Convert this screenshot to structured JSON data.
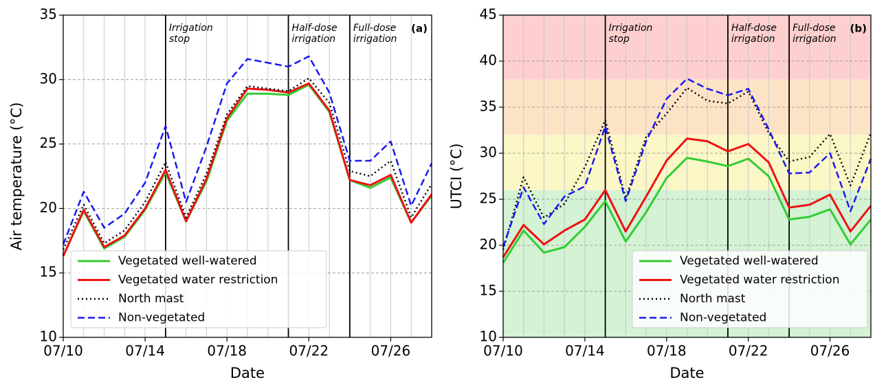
{
  "chart_data": [
    {
      "type": "line",
      "panel_label": "(a)",
      "xlabel": "Date",
      "ylabel": "Air temperature (°C)",
      "x": [
        "07/10",
        "07/11",
        "07/12",
        "07/13",
        "07/14",
        "07/15",
        "07/16",
        "07/17",
        "07/18",
        "07/19",
        "07/20",
        "07/21",
        "07/22",
        "07/23",
        "07/24",
        "07/25",
        "07/26",
        "07/27",
        "07/28"
      ],
      "xlim": [
        "07/10",
        "07/28"
      ],
      "xticks": [
        "07/10",
        "07/14",
        "07/18",
        "07/22",
        "07/26"
      ],
      "ylim": [
        10,
        35
      ],
      "yticks": [
        10,
        15,
        20,
        25,
        30,
        35
      ],
      "grid": true,
      "legend": "lower left",
      "events": [
        {
          "x": "07/15",
          "label": [
            "Irrigation",
            "stop"
          ]
        },
        {
          "x": "07/21",
          "label": [
            "Half-dose",
            "irrigation"
          ]
        },
        {
          "x": "07/24",
          "label": [
            "Full-dose",
            "irrigation"
          ]
        }
      ],
      "series": [
        {
          "name": "Vegetated well-watered",
          "color": "#33cc33",
          "style": "solid",
          "values": [
            16.3,
            19.8,
            16.9,
            17.8,
            19.9,
            22.8,
            19.0,
            22.1,
            26.8,
            28.9,
            28.9,
            28.8,
            29.6,
            27.5,
            22.2,
            21.6,
            22.4,
            18.9,
            21.0
          ]
        },
        {
          "name": "Vegetated water restriction",
          "color": "#ee1111",
          "style": "solid",
          "values": [
            16.3,
            19.9,
            17.0,
            17.9,
            20.0,
            23.0,
            19.0,
            22.3,
            27.0,
            29.3,
            29.2,
            29.0,
            29.7,
            27.6,
            22.2,
            21.8,
            22.6,
            18.9,
            21.1
          ]
        },
        {
          "name": "North mast",
          "color": "#000000",
          "style": "dotted",
          "values": [
            16.8,
            20.3,
            17.3,
            18.3,
            20.5,
            23.6,
            19.3,
            22.7,
            27.3,
            29.5,
            29.3,
            29.1,
            30.1,
            28.2,
            22.9,
            22.5,
            23.7,
            19.3,
            21.9
          ]
        },
        {
          "name": "Non-vegetated",
          "color": "#1a1aee",
          "style": "dashed",
          "values": [
            17.2,
            21.3,
            18.5,
            19.6,
            22.0,
            26.4,
            20.5,
            24.8,
            29.7,
            31.6,
            31.3,
            31.0,
            31.8,
            29.0,
            23.7,
            23.7,
            25.2,
            20.2,
            23.5
          ]
        }
      ]
    },
    {
      "type": "line",
      "panel_label": "(b)",
      "xlabel": "Date",
      "ylabel": "UTCI (°C)",
      "x": [
        "07/10",
        "07/11",
        "07/12",
        "07/13",
        "07/14",
        "07/15",
        "07/16",
        "07/17",
        "07/18",
        "07/19",
        "07/20",
        "07/21",
        "07/22",
        "07/23",
        "07/24",
        "07/25",
        "07/26",
        "07/27",
        "07/28"
      ],
      "xlim": [
        "07/10",
        "07/28"
      ],
      "xticks": [
        "07/10",
        "07/14",
        "07/18",
        "07/22",
        "07/26"
      ],
      "ylim": [
        10,
        45
      ],
      "yticks": [
        10,
        15,
        20,
        25,
        30,
        35,
        40,
        45
      ],
      "grid": true,
      "legend": "lower right",
      "bands": [
        {
          "from": 10,
          "to": 26,
          "color": "#d4f2d4"
        },
        {
          "from": 26,
          "to": 32,
          "color": "#fbf7c6"
        },
        {
          "from": 32,
          "to": 38,
          "color": "#fde3c6"
        },
        {
          "from": 38,
          "to": 45,
          "color": "#fdcfcf"
        }
      ],
      "events": [
        {
          "x": "07/15",
          "label": [
            "Irrigation",
            "stop"
          ]
        },
        {
          "x": "07/21",
          "label": [
            "Half-dose",
            "irrigation"
          ]
        },
        {
          "x": "07/24",
          "label": [
            "Full-dose",
            "irrigation"
          ]
        }
      ],
      "series": [
        {
          "name": "Vegetated well-watered",
          "color": "#33cc33",
          "style": "solid",
          "values": [
            18.1,
            21.6,
            19.2,
            19.8,
            22.0,
            24.8,
            20.4,
            23.6,
            27.3,
            29.5,
            29.1,
            28.6,
            29.4,
            27.5,
            22.8,
            23.1,
            23.9,
            20.1,
            22.8
          ]
        },
        {
          "name": "Vegetated water restriction",
          "color": "#ee1111",
          "style": "solid",
          "values": [
            18.7,
            22.2,
            20.1,
            21.6,
            22.8,
            26.0,
            21.5,
            25.3,
            29.2,
            31.6,
            31.3,
            30.2,
            31.0,
            29.0,
            24.1,
            24.4,
            25.5,
            21.5,
            24.3
          ]
        },
        {
          "name": "North mast",
          "color": "#000000",
          "style": "dotted",
          "values": [
            19.5,
            27.4,
            23.0,
            24.5,
            28.5,
            33.6,
            25.1,
            31.8,
            34.3,
            37.1,
            35.7,
            35.4,
            36.7,
            32.2,
            29.1,
            29.6,
            32.1,
            26.5,
            32.2
          ]
        },
        {
          "name": "Non-vegetated",
          "color": "#1a1aee",
          "style": "dashed",
          "values": [
            19.8,
            26.3,
            22.3,
            25.3,
            26.4,
            32.9,
            24.8,
            31.3,
            35.9,
            38.1,
            37.0,
            36.3,
            37.0,
            32.6,
            27.8,
            27.9,
            30.0,
            23.7,
            29.4
          ]
        }
      ]
    }
  ]
}
